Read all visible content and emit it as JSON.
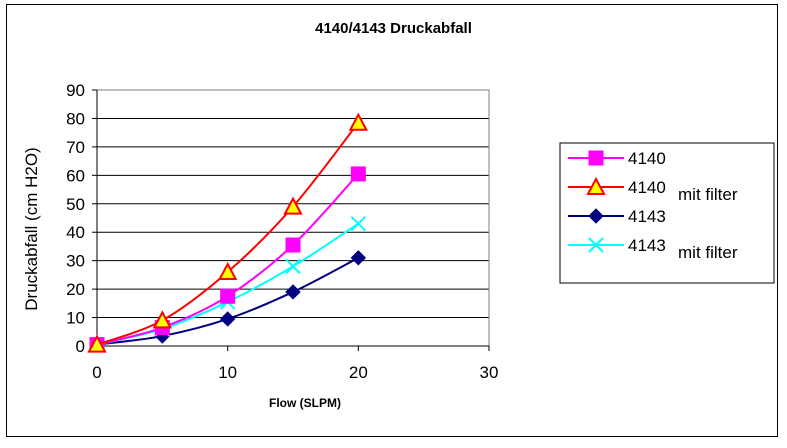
{
  "chart_data": {
    "type": "line",
    "title": "4140/4143 Druckabfall",
    "xlabel": "Flow (SLPM)",
    "ylabel": "Druckabfall (cm H2O)",
    "xlim": [
      0,
      30
    ],
    "ylim": [
      0,
      90
    ],
    "xticks": [
      0,
      10,
      20,
      30
    ],
    "yticks": [
      0,
      10,
      20,
      30,
      40,
      50,
      60,
      70,
      80,
      90
    ],
    "grid": "horizontal",
    "legend_position": "right",
    "series": [
      {
        "name": "4140",
        "legend_label": "4140",
        "x": [
          0,
          5,
          10,
          15,
          20
        ],
        "y": [
          0.5,
          6.5,
          17.5,
          35.5,
          60.5
        ],
        "color": "#ff00ff",
        "marker": "square"
      },
      {
        "name": "4140 mit filter",
        "legend_label": "4140",
        "legend_overlay": "mit filter",
        "x": [
          0,
          5,
          10,
          15,
          20
        ],
        "y": [
          0.5,
          9,
          26,
          49,
          78.5
        ],
        "color": "#ff0000",
        "marker": "triangle"
      },
      {
        "name": "4143",
        "legend_label": "4143",
        "x": [
          0,
          5,
          10,
          15,
          20
        ],
        "y": [
          0.5,
          3.5,
          9.5,
          19,
          31
        ],
        "color": "#000080",
        "marker": "diamond"
      },
      {
        "name": "4143 mit filter",
        "legend_label": "4143",
        "legend_overlay": "mit filter",
        "x": [
          0,
          5,
          10,
          15,
          20
        ],
        "y": [
          0.5,
          6,
          15.5,
          28,
          43
        ],
        "color": "#00ffff",
        "marker": "x"
      }
    ]
  }
}
